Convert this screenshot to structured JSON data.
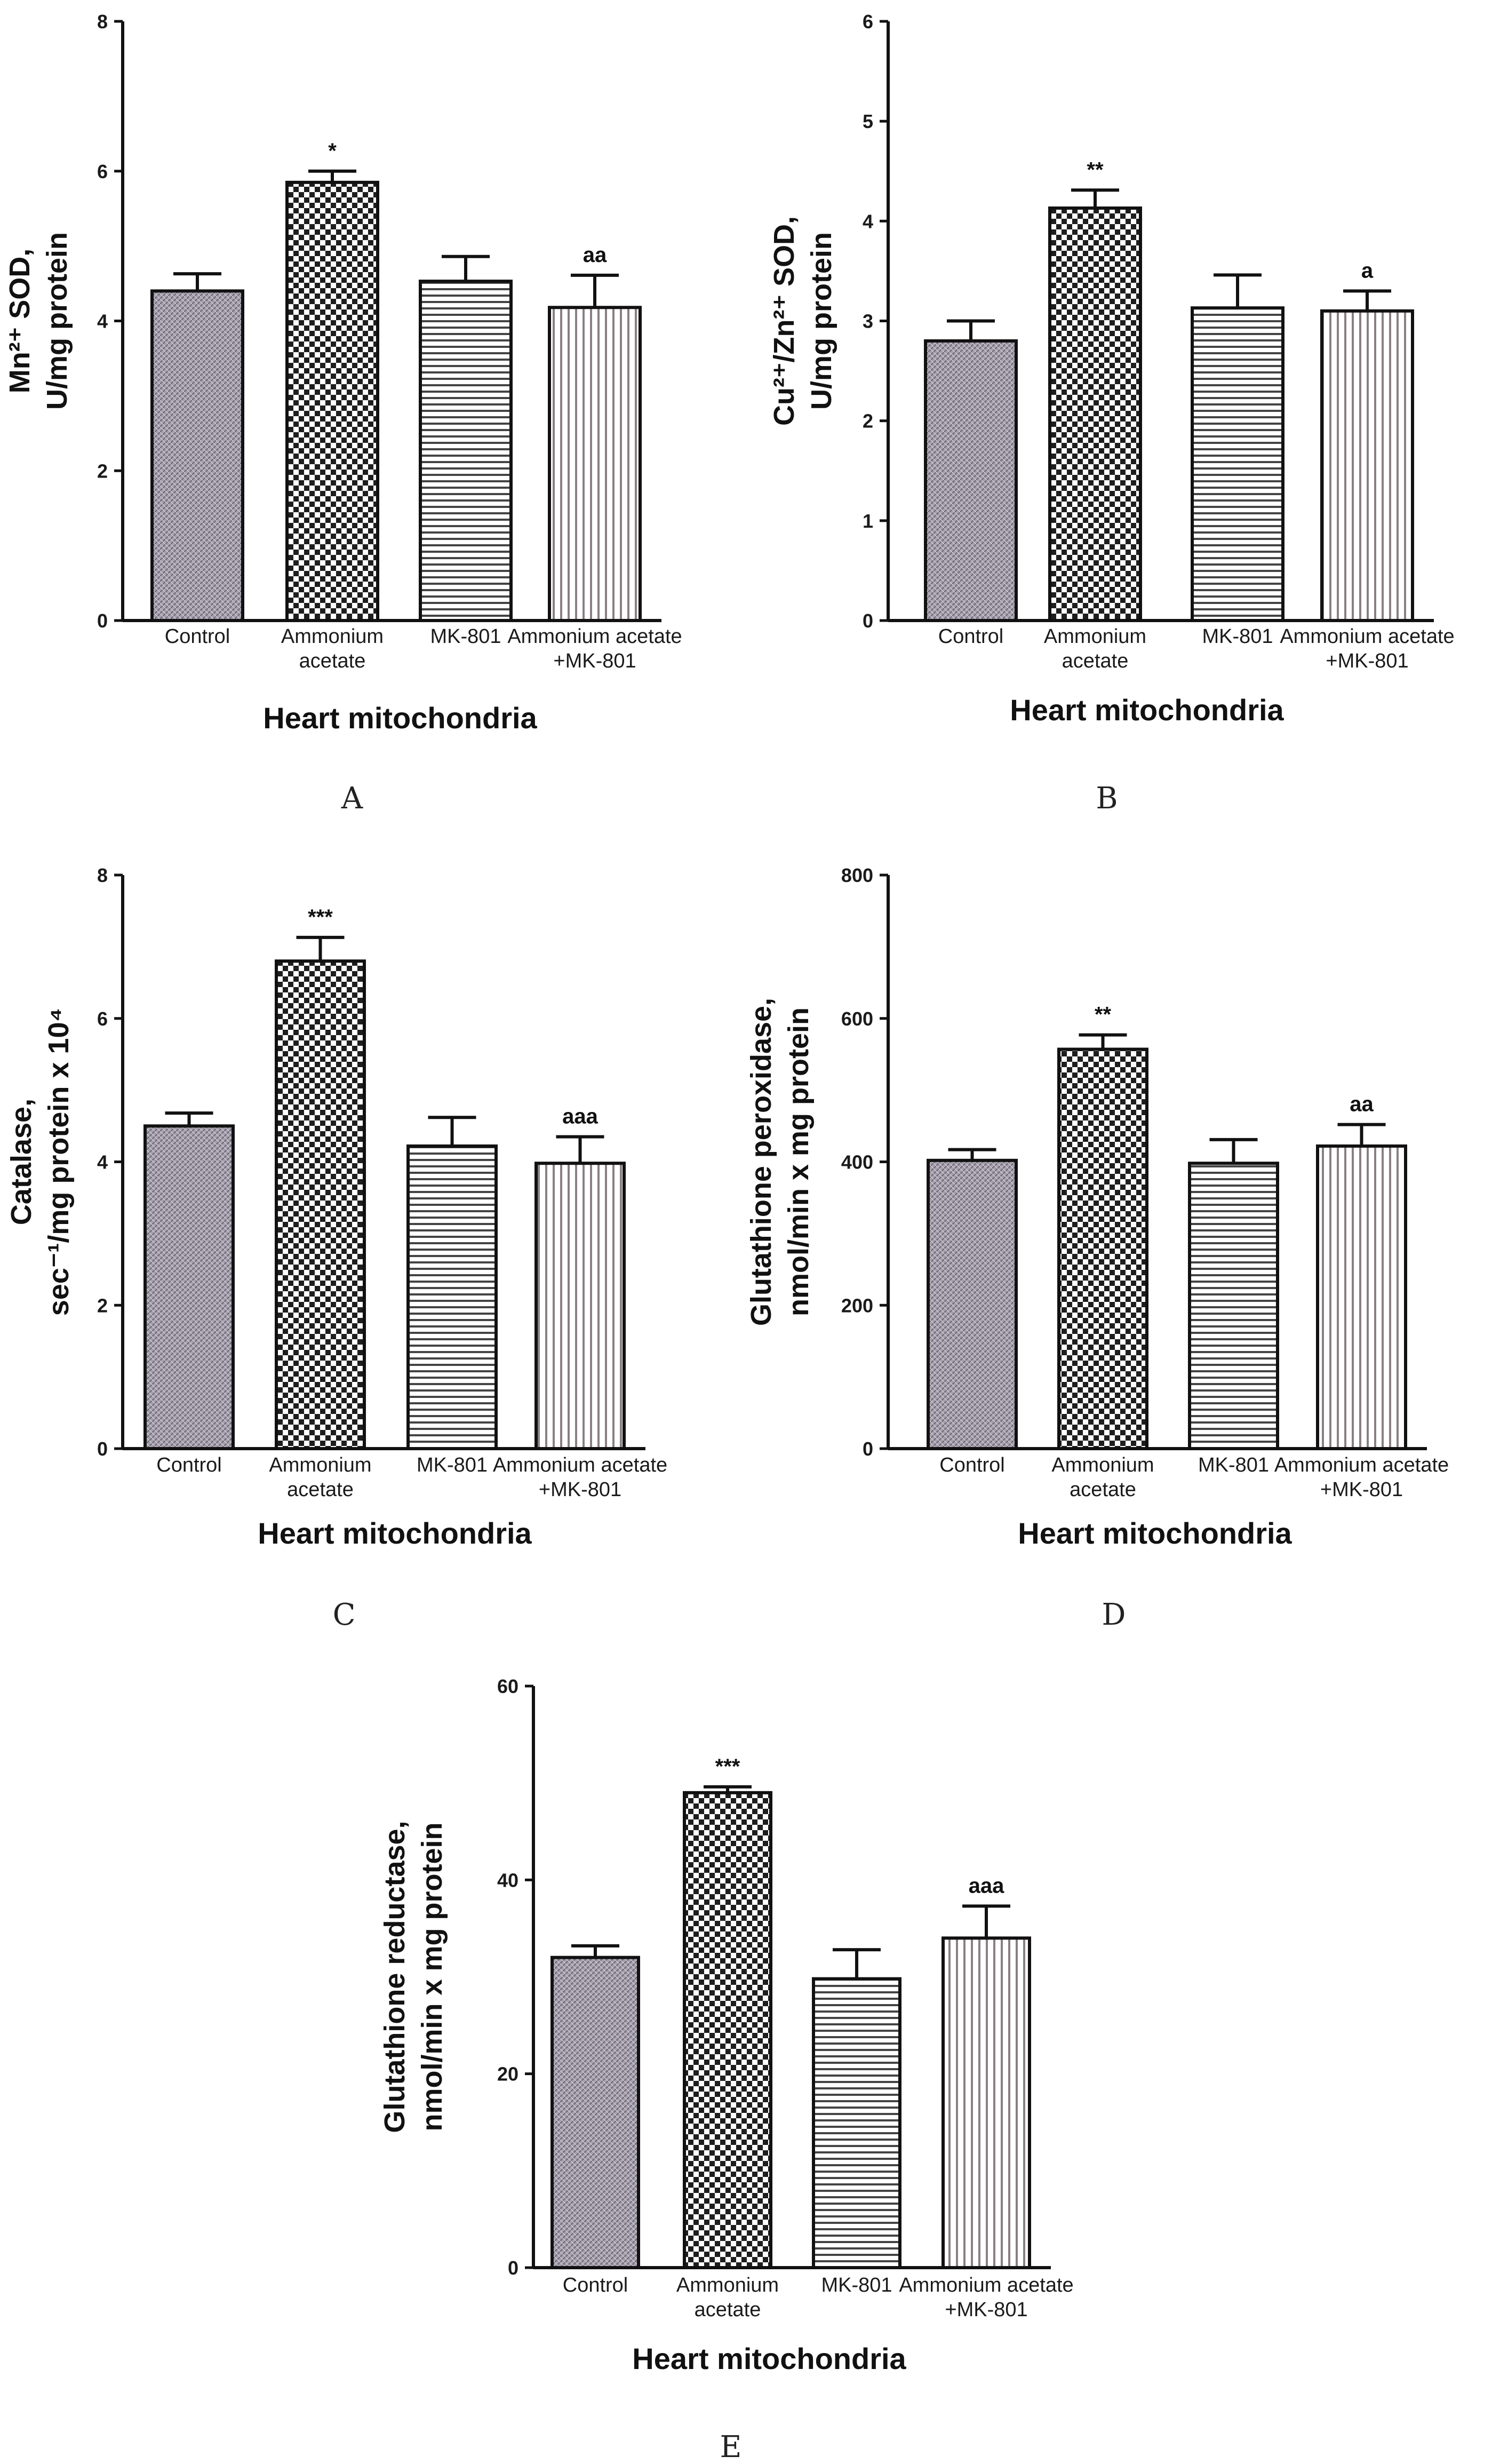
{
  "chart_data": [
    {
      "type": "bar",
      "panel": "A",
      "categories": [
        "Control",
        "Ammonium acetate",
        "MK-801",
        "Ammonium acetate +MK-801"
      ],
      "category_lines": [
        [
          "Control"
        ],
        [
          "Ammonium",
          "acetate"
        ],
        [
          "MK-801"
        ],
        [
          "Ammonium acetate",
          "+MK-801"
        ]
      ],
      "values": [
        4.4,
        5.85,
        4.53,
        4.18
      ],
      "errors": [
        0.23,
        0.15,
        0.33,
        0.43
      ],
      "significance": [
        "",
        "*",
        "",
        "aa"
      ],
      "xlabel": "Heart mitochondria",
      "ylabel_lines": [
        "Mn²⁺ SOD,",
        "U/mg protein"
      ],
      "ylim": [
        0,
        8
      ],
      "yticks": [
        0,
        2,
        4,
        6,
        8
      ]
    },
    {
      "type": "bar",
      "panel": "B",
      "categories": [
        "Control",
        "Ammonium acetate",
        "MK-801",
        "Ammonium acetate +MK-801"
      ],
      "category_lines": [
        [
          "Control"
        ],
        [
          "Ammonium",
          "acetate"
        ],
        [
          "MK-801"
        ],
        [
          "Ammonium acetate",
          "+MK-801"
        ]
      ],
      "values": [
        2.8,
        4.13,
        3.13,
        3.1
      ],
      "errors": [
        0.2,
        0.18,
        0.33,
        0.2
      ],
      "significance": [
        "",
        "**",
        "",
        "a"
      ],
      "xlabel": "Heart mitochondria",
      "ylabel_lines": [
        "Cu²⁺/Zn²⁺ SOD,",
        "U/mg protein"
      ],
      "ylim": [
        0,
        6
      ],
      "yticks": [
        0,
        1,
        2,
        3,
        4,
        5,
        6
      ]
    },
    {
      "type": "bar",
      "panel": "C",
      "categories": [
        "Control",
        "Ammonium acetate",
        "MK-801",
        "Ammonium acetate +MK-801"
      ],
      "category_lines": [
        [
          "Control"
        ],
        [
          "Ammonium",
          "acetate"
        ],
        [
          "MK-801"
        ],
        [
          "Ammonium acetate",
          "+MK-801"
        ]
      ],
      "values": [
        4.5,
        6.8,
        4.22,
        3.98
      ],
      "errors": [
        0.18,
        0.33,
        0.4,
        0.37
      ],
      "significance": [
        "",
        "***",
        "",
        "aaa"
      ],
      "xlabel": "Heart mitochondria",
      "ylabel_lines": [
        "Catalase,",
        "sec⁻¹/mg protein x 10⁴"
      ],
      "ylim": [
        0,
        8
      ],
      "yticks": [
        0,
        2,
        4,
        6,
        8
      ]
    },
    {
      "type": "bar",
      "panel": "D",
      "categories": [
        "Control",
        "Ammonium acetate",
        "MK-801",
        "Ammonium acetate +MK-801"
      ],
      "category_lines": [
        [
          "Control"
        ],
        [
          "Ammonium",
          "acetate"
        ],
        [
          "MK-801"
        ],
        [
          "Ammonium acetate",
          "+MK-801"
        ]
      ],
      "values": [
        402,
        557,
        398,
        422
      ],
      "errors": [
        15,
        20,
        33,
        30
      ],
      "significance": [
        "",
        "**",
        "",
        "aa"
      ],
      "xlabel": "Heart mitochondria",
      "ylabel_lines": [
        "Glutathione peroxidase,",
        "nmol/min x mg protein"
      ],
      "ylim": [
        0,
        800
      ],
      "yticks": [
        0,
        200,
        400,
        600,
        800
      ]
    },
    {
      "type": "bar",
      "panel": "E",
      "categories": [
        "Control",
        "Ammonium acetate",
        "MK-801",
        "Ammonium acetate +MK-801"
      ],
      "category_lines": [
        [
          "Control"
        ],
        [
          "Ammonium",
          "acetate"
        ],
        [
          "MK-801"
        ],
        [
          "Ammonium acetate",
          "+MK-801"
        ]
      ],
      "values": [
        32,
        49,
        29.8,
        34
      ],
      "errors": [
        1.2,
        0.6,
        3,
        3.3
      ],
      "significance": [
        "",
        "***",
        "",
        "aaa"
      ],
      "xlabel": "Heart mitochondria",
      "ylabel_lines": [
        "Glutathione reductase,",
        "nmol/min x mg protein"
      ],
      "ylim": [
        0,
        60
      ],
      "yticks": [
        0,
        20,
        40,
        60
      ]
    }
  ]
}
